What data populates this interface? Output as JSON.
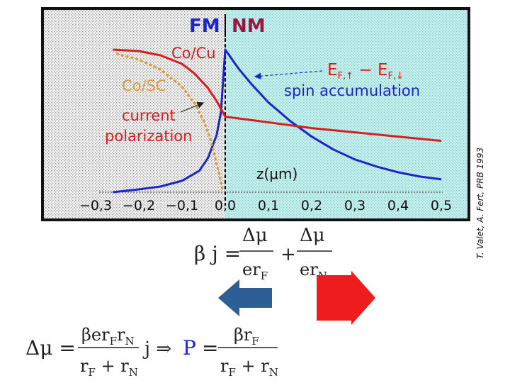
{
  "chart_data": {
    "type": "line",
    "title": "",
    "xlabel": "z(μm)",
    "ylabel": "",
    "xlim": [
      -0.3,
      0.5
    ],
    "x_ticks": [
      "-0,3",
      "-0,2",
      "-0,1",
      "0,0",
      "0,1",
      "0,2",
      "0,3",
      "0,4",
      "0,5"
    ],
    "region_labels": {
      "left": "FM",
      "right": "NM"
    },
    "series": [
      {
        "id": "spin",
        "x": [
          -0.26,
          -0.2,
          -0.15,
          -0.1,
          -0.06,
          -0.04,
          -0.02,
          -0.01,
          0.0,
          0.03,
          0.06,
          0.1,
          0.15,
          0.2,
          0.25,
          0.3,
          0.35,
          0.4,
          0.45,
          0.5
        ],
        "values": [
          0.0,
          0.02,
          0.04,
          0.08,
          0.15,
          0.24,
          0.4,
          0.56,
          1.0,
          0.87,
          0.76,
          0.63,
          0.5,
          0.39,
          0.3,
          0.23,
          0.18,
          0.14,
          0.11,
          0.09
        ],
        "color": "#1a26c8"
      },
      {
        "id": "co-cu",
        "x": [
          -0.26,
          -0.2,
          -0.15,
          -0.1,
          -0.07,
          -0.04,
          -0.02,
          0.0,
          0.05,
          0.1,
          0.2,
          0.3,
          0.4,
          0.5
        ],
        "values": [
          1.0,
          0.99,
          0.96,
          0.9,
          0.83,
          0.73,
          0.64,
          0.53,
          0.51,
          0.49,
          0.45,
          0.42,
          0.39,
          0.36
        ],
        "color": "#d62020"
      },
      {
        "id": "co-sc",
        "x": [
          -0.25,
          -0.2,
          -0.15,
          -0.1,
          -0.07,
          -0.05,
          -0.035,
          -0.025,
          -0.015,
          -0.005
        ],
        "values": [
          0.97,
          0.93,
          0.86,
          0.74,
          0.62,
          0.5,
          0.38,
          0.26,
          0.14,
          0.0
        ],
        "color": "#e39a3c",
        "style": "dotted"
      }
    ],
    "annotations": {
      "co_cu": "Co/Cu",
      "co_sc": "Co/SC",
      "current_polarization": [
        "current",
        "polarization"
      ],
      "spin_accumulation_formula": [
        "E",
        "F,↑",
        " − E",
        "F,↓"
      ],
      "spin_accumulation": "spin accumulation"
    },
    "credit": "T. Valet, A. Fert, PRB 1993"
  },
  "equations": {
    "eq1": {
      "lhs": "β j =",
      "n1": "Δμ",
      "d1": "er",
      "d1sub": "F",
      "plus": "+",
      "n2": "Δμ",
      "d2": "er",
      "d2sub": "N"
    },
    "eq2": {
      "lhs": "Δμ =",
      "num_a": "βer",
      "num_b": "F",
      "num_c": "r",
      "num_d": "N",
      "den_a": "r",
      "den_b": "F",
      "den_c": " + r",
      "den_d": "N",
      "mid": "j ⇒",
      "p": "P",
      "eq": "=",
      "num2_a": "βr",
      "num2_b": "F",
      "den2_a": "r",
      "den2_b": "F",
      "den2_c": " + r",
      "den2_d": "N"
    }
  },
  "colors": {
    "fm": "#1a26c8",
    "nm": "#9a1840",
    "nm_fill": "#c4f0ee",
    "left_arrow": "#2d5f94",
    "right_arrow": "#ee1c1c",
    "sc_dots": "#e39a3c"
  }
}
